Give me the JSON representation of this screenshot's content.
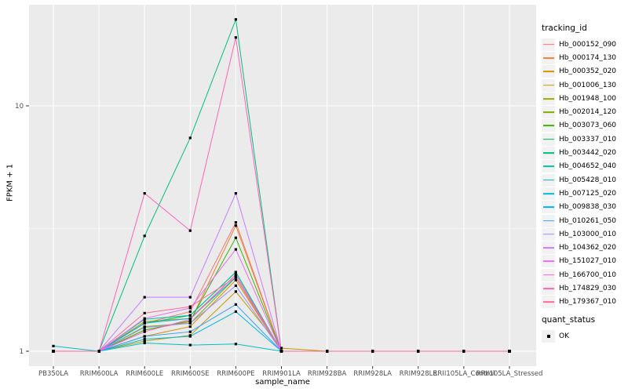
{
  "chart_data": {
    "type": "line",
    "title": "",
    "xlabel": "sample_name",
    "ylabel": "FPKM + 1",
    "x_categories": [
      "PB350LA",
      "RRIM600LA",
      "RRIM600LE",
      "RRIM600SE",
      "RRIM600PE",
      "RRIM901LA",
      "RRIM928BA",
      "RRIM928LA",
      "RRIM928LE",
      "RRII105LA_Control",
      "RRII105LA_Stressed"
    ],
    "y_scale": "log10",
    "y_ticks": [
      {
        "label": "1",
        "value": 1
      },
      {
        "label": "10",
        "value": 10
      }
    ],
    "y_minor_breaks": [
      3.16228,
      31.6228
    ],
    "ylim": [
      0.87,
      26
    ],
    "grid": "on",
    "legend_position": "right",
    "legend_color_title": "tracking_id",
    "legend_shape_title": "quant_status",
    "legend_shape_items": [
      {
        "label": "OK",
        "shape": "filled-square",
        "color": "#000000"
      }
    ],
    "point": {
      "shape": "square",
      "color": "#000000",
      "size": 3.2
    },
    "series": [
      {
        "name": "Hb_000152_090",
        "color": "#F8766D",
        "values": [
          1,
          1,
          1.3,
          1.45,
          3.35,
          1,
          1,
          1,
          1,
          1,
          1
        ]
      },
      {
        "name": "Hb_000174_130",
        "color": "#EA8331",
        "values": [
          1,
          1,
          1.22,
          1.32,
          3.25,
          1,
          1,
          1,
          1,
          1,
          1
        ]
      },
      {
        "name": "Hb_000352_020",
        "color": "#D89000",
        "values": [
          1,
          1,
          1.15,
          1.26,
          1.95,
          1,
          1,
          1,
          1,
          1,
          1
        ]
      },
      {
        "name": "Hb_001006_130",
        "color": "#C09B00",
        "values": [
          1,
          1,
          1.1,
          1.16,
          1.75,
          1.03,
          1,
          1,
          1,
          1,
          1
        ]
      },
      {
        "name": "Hb_001948_100",
        "color": "#A3A500",
        "values": [
          1,
          1,
          1.32,
          1.36,
          2.05,
          1,
          1,
          1,
          1,
          1,
          1
        ]
      },
      {
        "name": "Hb_002014_120",
        "color": "#7CAE00",
        "values": [
          1,
          1,
          1.26,
          1.3,
          2.0,
          1,
          1,
          1,
          1,
          1,
          1
        ]
      },
      {
        "name": "Hb_003073_060",
        "color": "#39B600",
        "values": [
          1,
          1,
          1.22,
          1.33,
          2.9,
          1,
          1,
          1,
          1,
          1,
          1
        ]
      },
      {
        "name": "Hb_003337_010",
        "color": "#00BB4E",
        "values": [
          1,
          1,
          1.3,
          1.4,
          2.1,
          1,
          1,
          1,
          1,
          1,
          1
        ]
      },
      {
        "name": "Hb_003442_020",
        "color": "#00BF7D",
        "values": [
          1,
          1,
          2.95,
          7.4,
          22.5,
          1,
          1,
          1,
          1,
          1,
          1
        ]
      },
      {
        "name": "Hb_004652_040",
        "color": "#00C1A3",
        "values": [
          1,
          1,
          1.35,
          1.4,
          2.1,
          1,
          1,
          1,
          1,
          1,
          1
        ]
      },
      {
        "name": "Hb_005428_010",
        "color": "#00BFC4",
        "values": [
          1.05,
          1,
          1.08,
          1.06,
          1.07,
          1,
          1,
          1,
          1,
          1,
          1
        ]
      },
      {
        "name": "Hb_007125_020",
        "color": "#00BAE0",
        "values": [
          1,
          1,
          1.12,
          1.15,
          1.45,
          1,
          1,
          1,
          1,
          1,
          1
        ]
      },
      {
        "name": "Hb_009838_030",
        "color": "#00B0F6",
        "values": [
          1,
          1,
          1.3,
          1.36,
          2.0,
          1,
          1,
          1,
          1,
          1,
          1
        ]
      },
      {
        "name": "Hb_010261_050",
        "color": "#35A2FF",
        "values": [
          1,
          1,
          1.15,
          1.2,
          1.55,
          1,
          1,
          1,
          1,
          1,
          1
        ]
      },
      {
        "name": "Hb_103000_010",
        "color": "#9590FF",
        "values": [
          1,
          1,
          1.25,
          1.3,
          1.85,
          1,
          1,
          1,
          1,
          1,
          1
        ]
      },
      {
        "name": "Hb_104362_020",
        "color": "#C77CFF",
        "values": [
          1,
          1,
          1.66,
          1.66,
          4.4,
          1,
          1,
          1,
          1,
          1,
          1
        ]
      },
      {
        "name": "Hb_151027_010",
        "color": "#E76BF3",
        "values": [
          1,
          1,
          1.36,
          1.5,
          2.6,
          1,
          1,
          1,
          1,
          1,
          1
        ]
      },
      {
        "name": "Hb_166700_010",
        "color": "#FA62DB",
        "values": [
          1,
          1,
          1.2,
          1.35,
          2.05,
          1,
          1,
          1,
          1,
          1,
          1
        ]
      },
      {
        "name": "Hb_174829_030",
        "color": "#FF62BC",
        "values": [
          1,
          1,
          4.4,
          3.1,
          19.0,
          1,
          1,
          1,
          1,
          1,
          1
        ]
      },
      {
        "name": "Hb_179367_010",
        "color": "#FF6A98",
        "values": [
          1,
          1,
          1.43,
          1.52,
          2.0,
          1,
          1,
          1,
          1,
          1,
          1
        ]
      }
    ]
  },
  "style": {
    "background": "#FFFFFF",
    "panel_bg": "#EBEBEB",
    "grid_color": "#FFFFFF",
    "tick_mark_color": "#333333",
    "tick_label_color": "#4D4D4D",
    "axis_title_color": "#000000",
    "legend_key_bg": "#F2F2F2",
    "point_color": "#000000"
  }
}
